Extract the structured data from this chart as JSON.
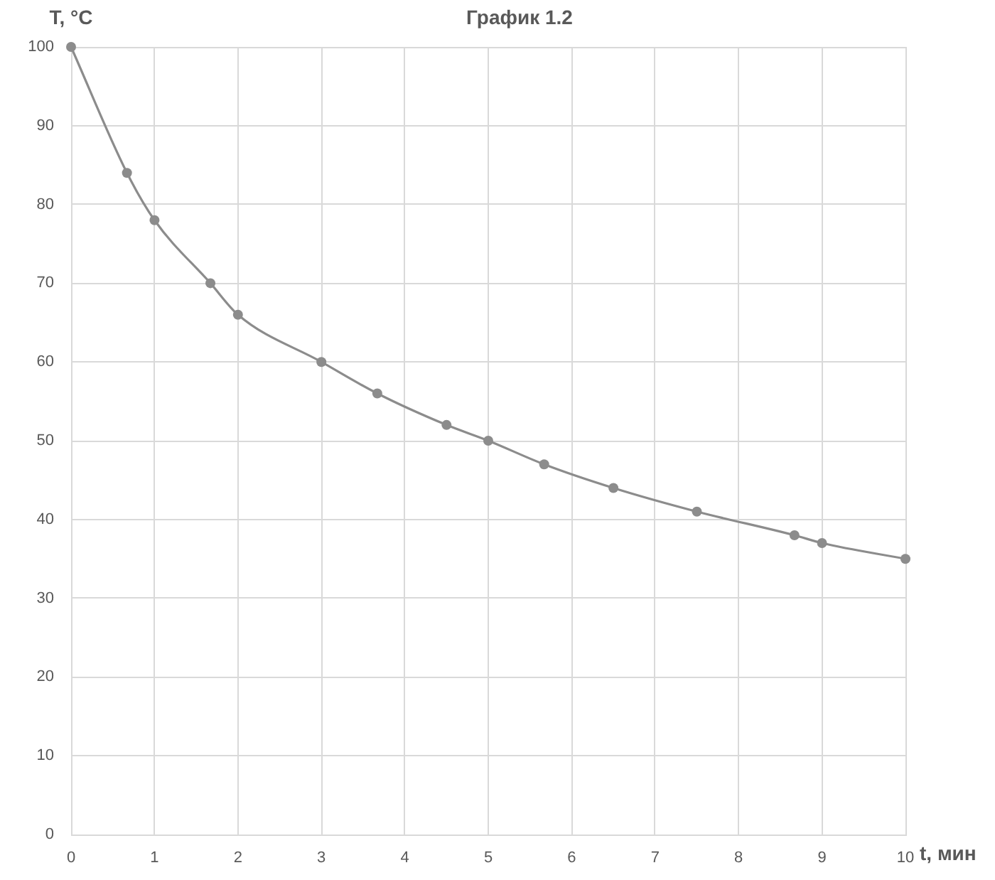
{
  "chart_data": {
    "type": "line",
    "title": "График 1.2",
    "xlabel": "t, мин",
    "ylabel": "T, °C",
    "x": [
      0,
      0.67,
      1,
      1.67,
      2,
      3,
      3.67,
      4.5,
      5,
      5.67,
      6.5,
      7.5,
      8.67,
      9,
      10
    ],
    "series": [
      {
        "color": "#8c8c8c",
        "values": [
          100,
          84,
          78,
          70,
          66,
          60,
          56,
          52,
          50,
          47,
          44,
          41,
          38,
          37,
          35
        ]
      }
    ],
    "xlim": [
      0,
      10
    ],
    "xticks": [
      0,
      1,
      2,
      3,
      4,
      5,
      6,
      7,
      8,
      9,
      10
    ],
    "ylim": [
      0,
      100
    ],
    "yticks": [
      0,
      10,
      20,
      30,
      40,
      50,
      60,
      70,
      80,
      90,
      100
    ],
    "grid": true,
    "marker": "circle",
    "line_style": "solid"
  }
}
